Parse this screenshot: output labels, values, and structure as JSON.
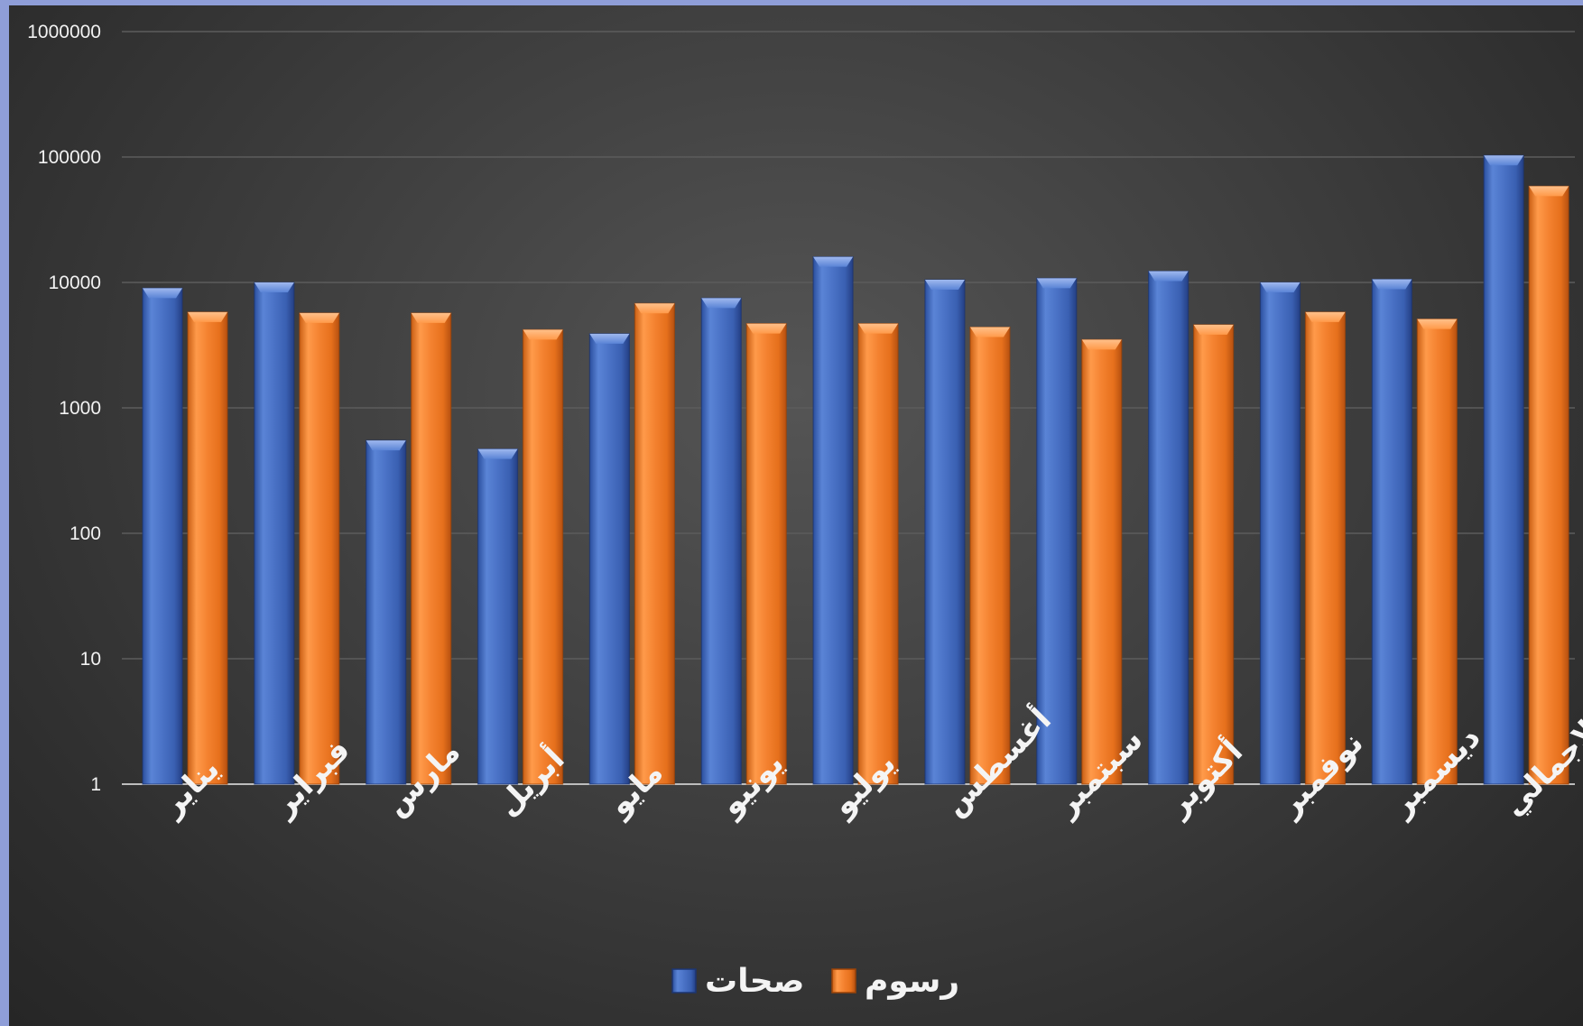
{
  "chart_data": {
    "type": "bar",
    "scale": "log",
    "ylim": [
      1,
      1000000
    ],
    "y_ticks": [
      "1",
      "10",
      "100",
      "1000",
      "10000",
      "100000",
      "1000000"
    ],
    "grid": true,
    "legend_position": "bottom",
    "categories": [
      "يناير",
      "فبراير",
      "مارس",
      "أبريل",
      "مايو",
      "يونيو",
      "يوليو",
      "أغسطس",
      "سبتمبر",
      "أكتوبر",
      "نوفمبر",
      "ديسمبر",
      "الاجمالي"
    ],
    "series": [
      {
        "name": "صحات",
        "color": "#4a70c4",
        "values": [
          9000,
          10000,
          550,
          470,
          3900,
          7500,
          16000,
          10500,
          10800,
          12300,
          10000,
          10600,
          103000
        ]
      },
      {
        "name": "رسوم",
        "color": "#f07f2a",
        "values": [
          5800,
          5700,
          5700,
          4200,
          6800,
          4700,
          4700,
          4400,
          3500,
          4600,
          5800,
          5100,
          58500
        ]
      }
    ]
  }
}
